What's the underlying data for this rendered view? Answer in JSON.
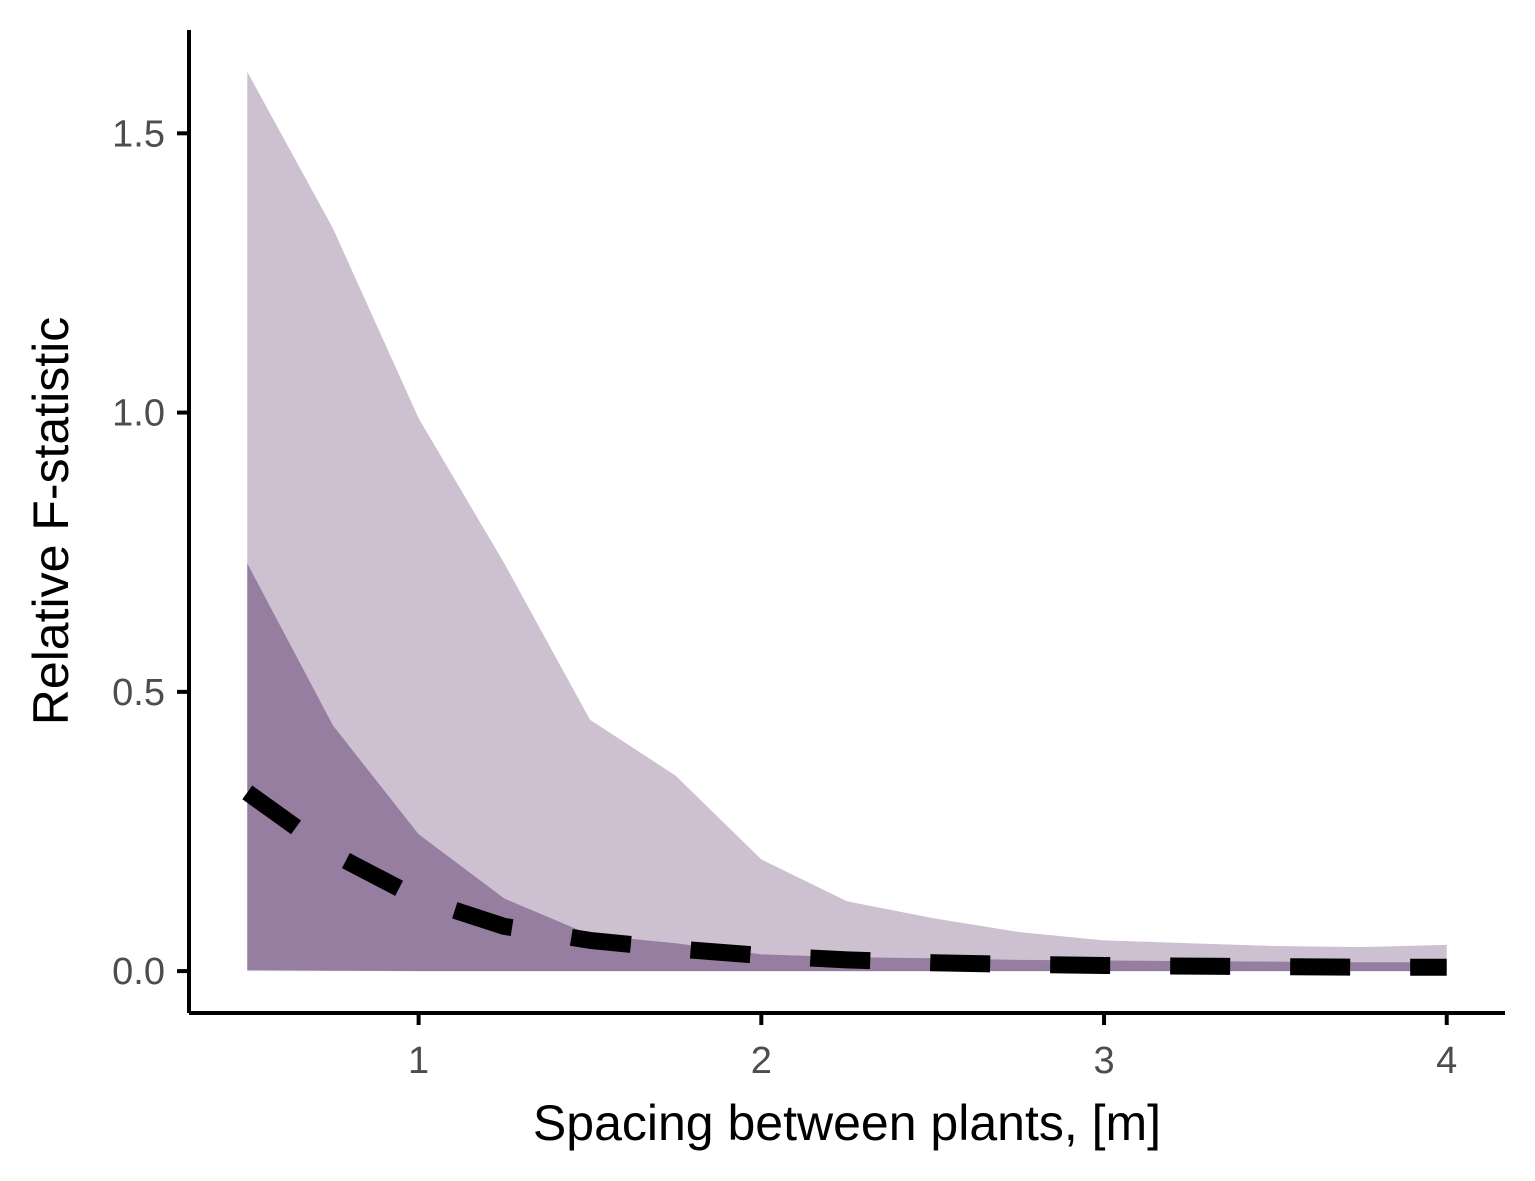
{
  "chart_data": {
    "type": "area",
    "xlabel": "Spacing between plants, [m]",
    "ylabel": "Relative F-statistic",
    "xlim": [
      0.33,
      4.17
    ],
    "ylim": [
      -0.075,
      1.685
    ],
    "x_ticks": [
      1,
      2,
      3,
      4
    ],
    "x_tick_labels": [
      "1",
      "2",
      "3",
      "4"
    ],
    "y_ticks": [
      0.0,
      0.5,
      1.0,
      1.5
    ],
    "y_tick_labels": [
      "0.0",
      "0.5",
      "1.0",
      "1.5"
    ],
    "grid": false,
    "x": [
      0.5,
      0.75,
      1.0,
      1.25,
      1.5,
      1.75,
      2.0,
      2.25,
      2.5,
      2.75,
      3.0,
      3.25,
      3.5,
      3.75,
      4.0
    ],
    "bands": [
      {
        "lower": [
          0.0,
          0.0,
          0.0,
          0.0,
          0.0,
          0.0,
          0.0,
          0.0,
          0.0,
          0.0,
          0.0,
          0.0,
          0.0,
          0.0,
          0.0
        ],
        "upper": [
          1.61,
          1.33,
          0.99,
          0.73,
          0.45,
          0.35,
          0.2,
          0.125,
          0.095,
          0.07,
          0.055,
          0.05,
          0.045,
          0.043,
          0.047
        ],
        "color": "#cdc0d1"
      },
      {
        "lower": [
          0.002,
          0.001,
          0.0,
          0.0,
          0.0,
          0.0,
          0.0,
          0.0,
          0.0,
          0.0,
          0.0,
          0.0,
          0.0,
          0.0,
          0.0
        ],
        "upper": [
          0.73,
          0.44,
          0.245,
          0.13,
          0.065,
          0.05,
          0.03,
          0.025,
          0.023,
          0.02,
          0.019,
          0.018,
          0.017,
          0.016,
          0.016
        ],
        "color": "#967ea0"
      }
    ],
    "series": [
      {
        "values": [
          0.32,
          0.21,
          0.13,
          0.08,
          0.055,
          0.04,
          0.028,
          0.02,
          0.015,
          0.012,
          0.01,
          0.009,
          0.008,
          0.007,
          0.007
        ],
        "style": "dashed",
        "color": "#000000"
      }
    ]
  }
}
